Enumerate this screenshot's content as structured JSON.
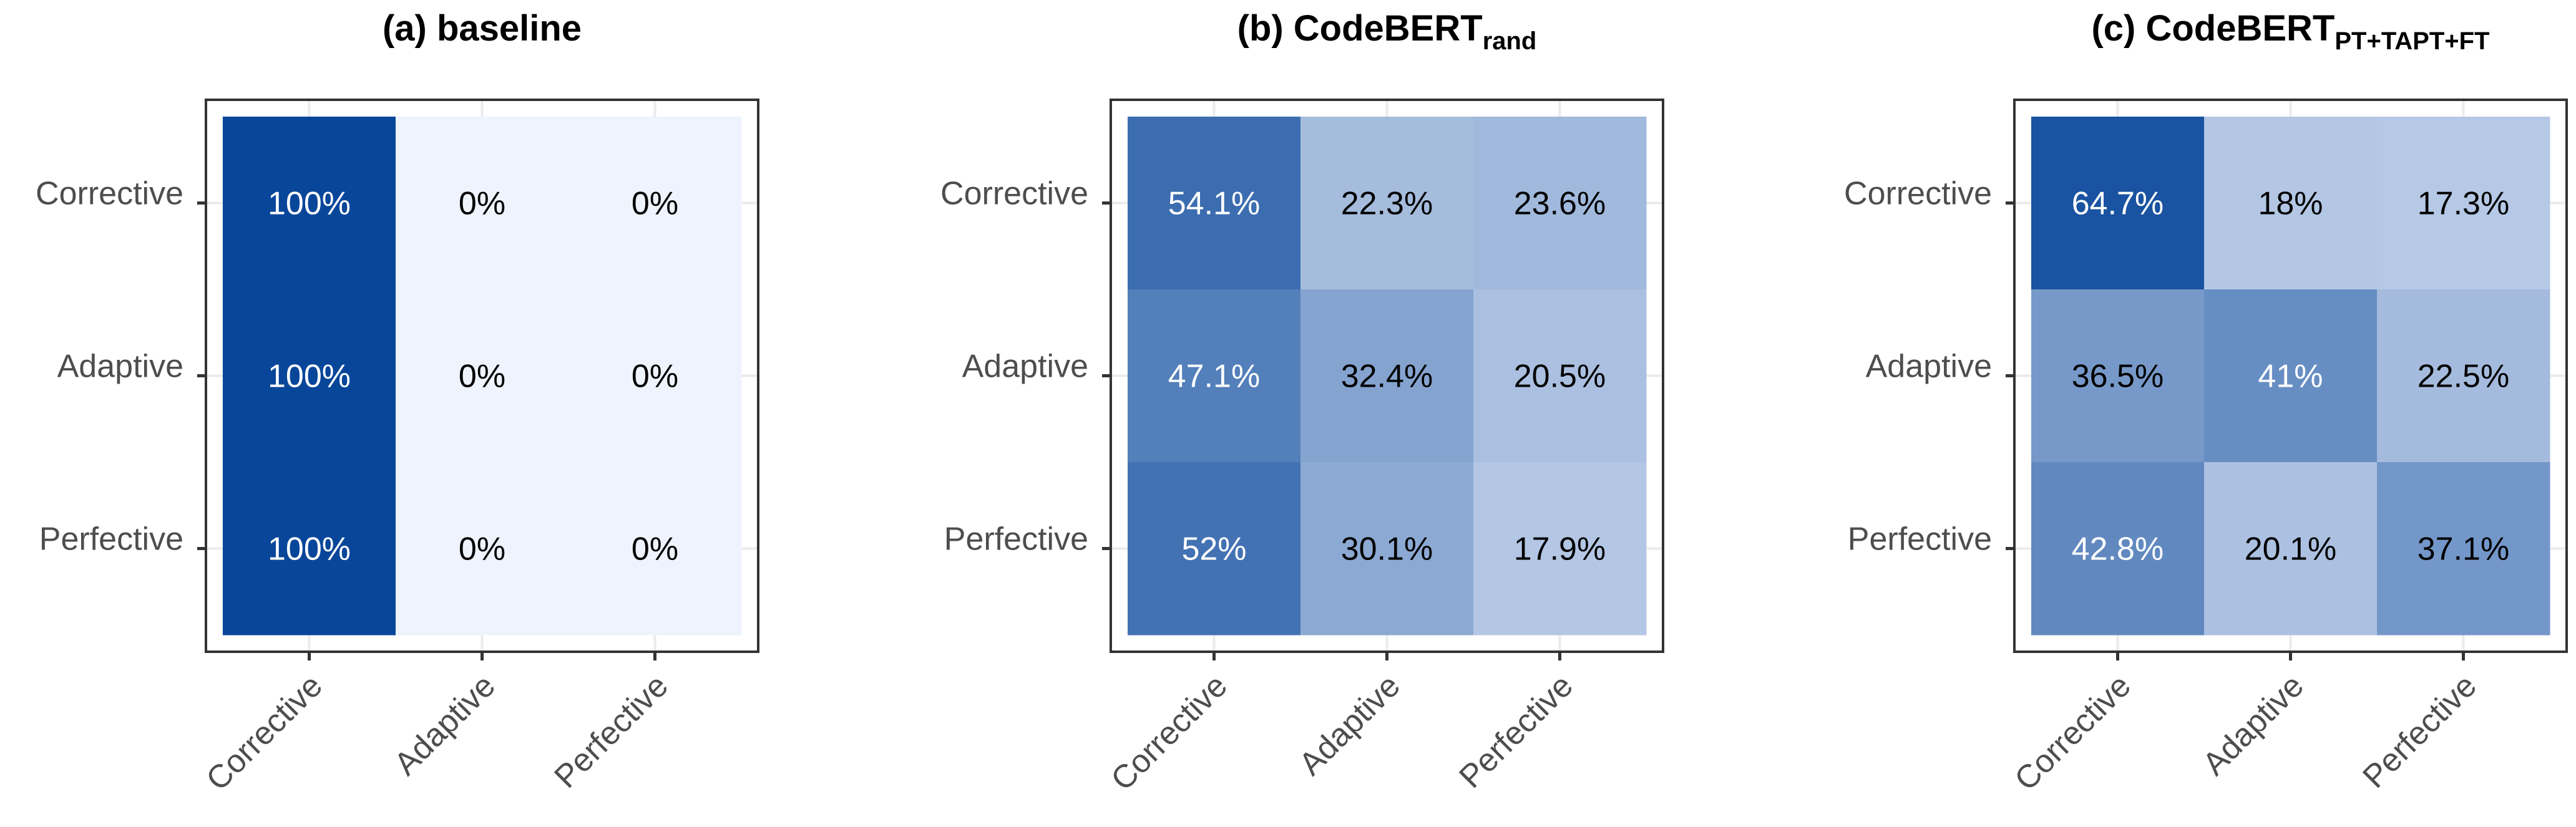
{
  "colors": {
    "scale_low": "#eef3fd",
    "scale_high": "#08469a",
    "border": "#333333",
    "tick_text": "#4d4d4d",
    "grid": "#ebebeb"
  },
  "chart_data": [
    {
      "type": "heatmap",
      "title_main": "(a) baseline",
      "title_sub": "",
      "rows": [
        "Corrective",
        "Adaptive",
        "Perfective"
      ],
      "columns": [
        "Corrective",
        "Adaptive",
        "Perfective"
      ],
      "values": [
        [
          100,
          0,
          0
        ],
        [
          100,
          0,
          0
        ],
        [
          100,
          0,
          0
        ]
      ],
      "labels": [
        [
          "100%",
          "0%",
          "0%"
        ],
        [
          "100%",
          "0%",
          "0%"
        ],
        [
          "100%",
          "0%",
          "0%"
        ]
      ],
      "xlabel": "",
      "ylabel": "",
      "legend": "none",
      "grid": true
    },
    {
      "type": "heatmap",
      "title_main": "(b) CodeBERT",
      "title_sub": "rand",
      "rows": [
        "Corrective",
        "Adaptive",
        "Perfective"
      ],
      "columns": [
        "Corrective",
        "Adaptive",
        "Perfective"
      ],
      "values": [
        [
          54.1,
          22.3,
          23.6
        ],
        [
          47.1,
          32.4,
          20.5
        ],
        [
          52,
          30.1,
          17.9
        ]
      ],
      "labels": [
        [
          "54.1%",
          "22.3%",
          "23.6%"
        ],
        [
          "47.1%",
          "32.4%",
          "20.5%"
        ],
        [
          "52%",
          "30.1%",
          "17.9%"
        ]
      ],
      "xlabel": "",
      "ylabel": "",
      "legend": "none",
      "grid": true
    },
    {
      "type": "heatmap",
      "title_main": "(c) CodeBERT",
      "title_sub": "PT+TAPT+FT",
      "rows": [
        "Corrective",
        "Adaptive",
        "Perfective"
      ],
      "columns": [
        "Corrective",
        "Adaptive",
        "Perfective"
      ],
      "values": [
        [
          64.7,
          18,
          17.3
        ],
        [
          36.5,
          41,
          22.5
        ],
        [
          42.8,
          20.1,
          37.1
        ]
      ],
      "labels": [
        [
          "64.7%",
          "18%",
          "17.3%"
        ],
        [
          "36.5%",
          "41%",
          "22.5%"
        ],
        [
          "42.8%",
          "20.1%",
          "37.1%"
        ]
      ],
      "xlabel": "",
      "ylabel": "",
      "legend": "none",
      "grid": true
    }
  ]
}
